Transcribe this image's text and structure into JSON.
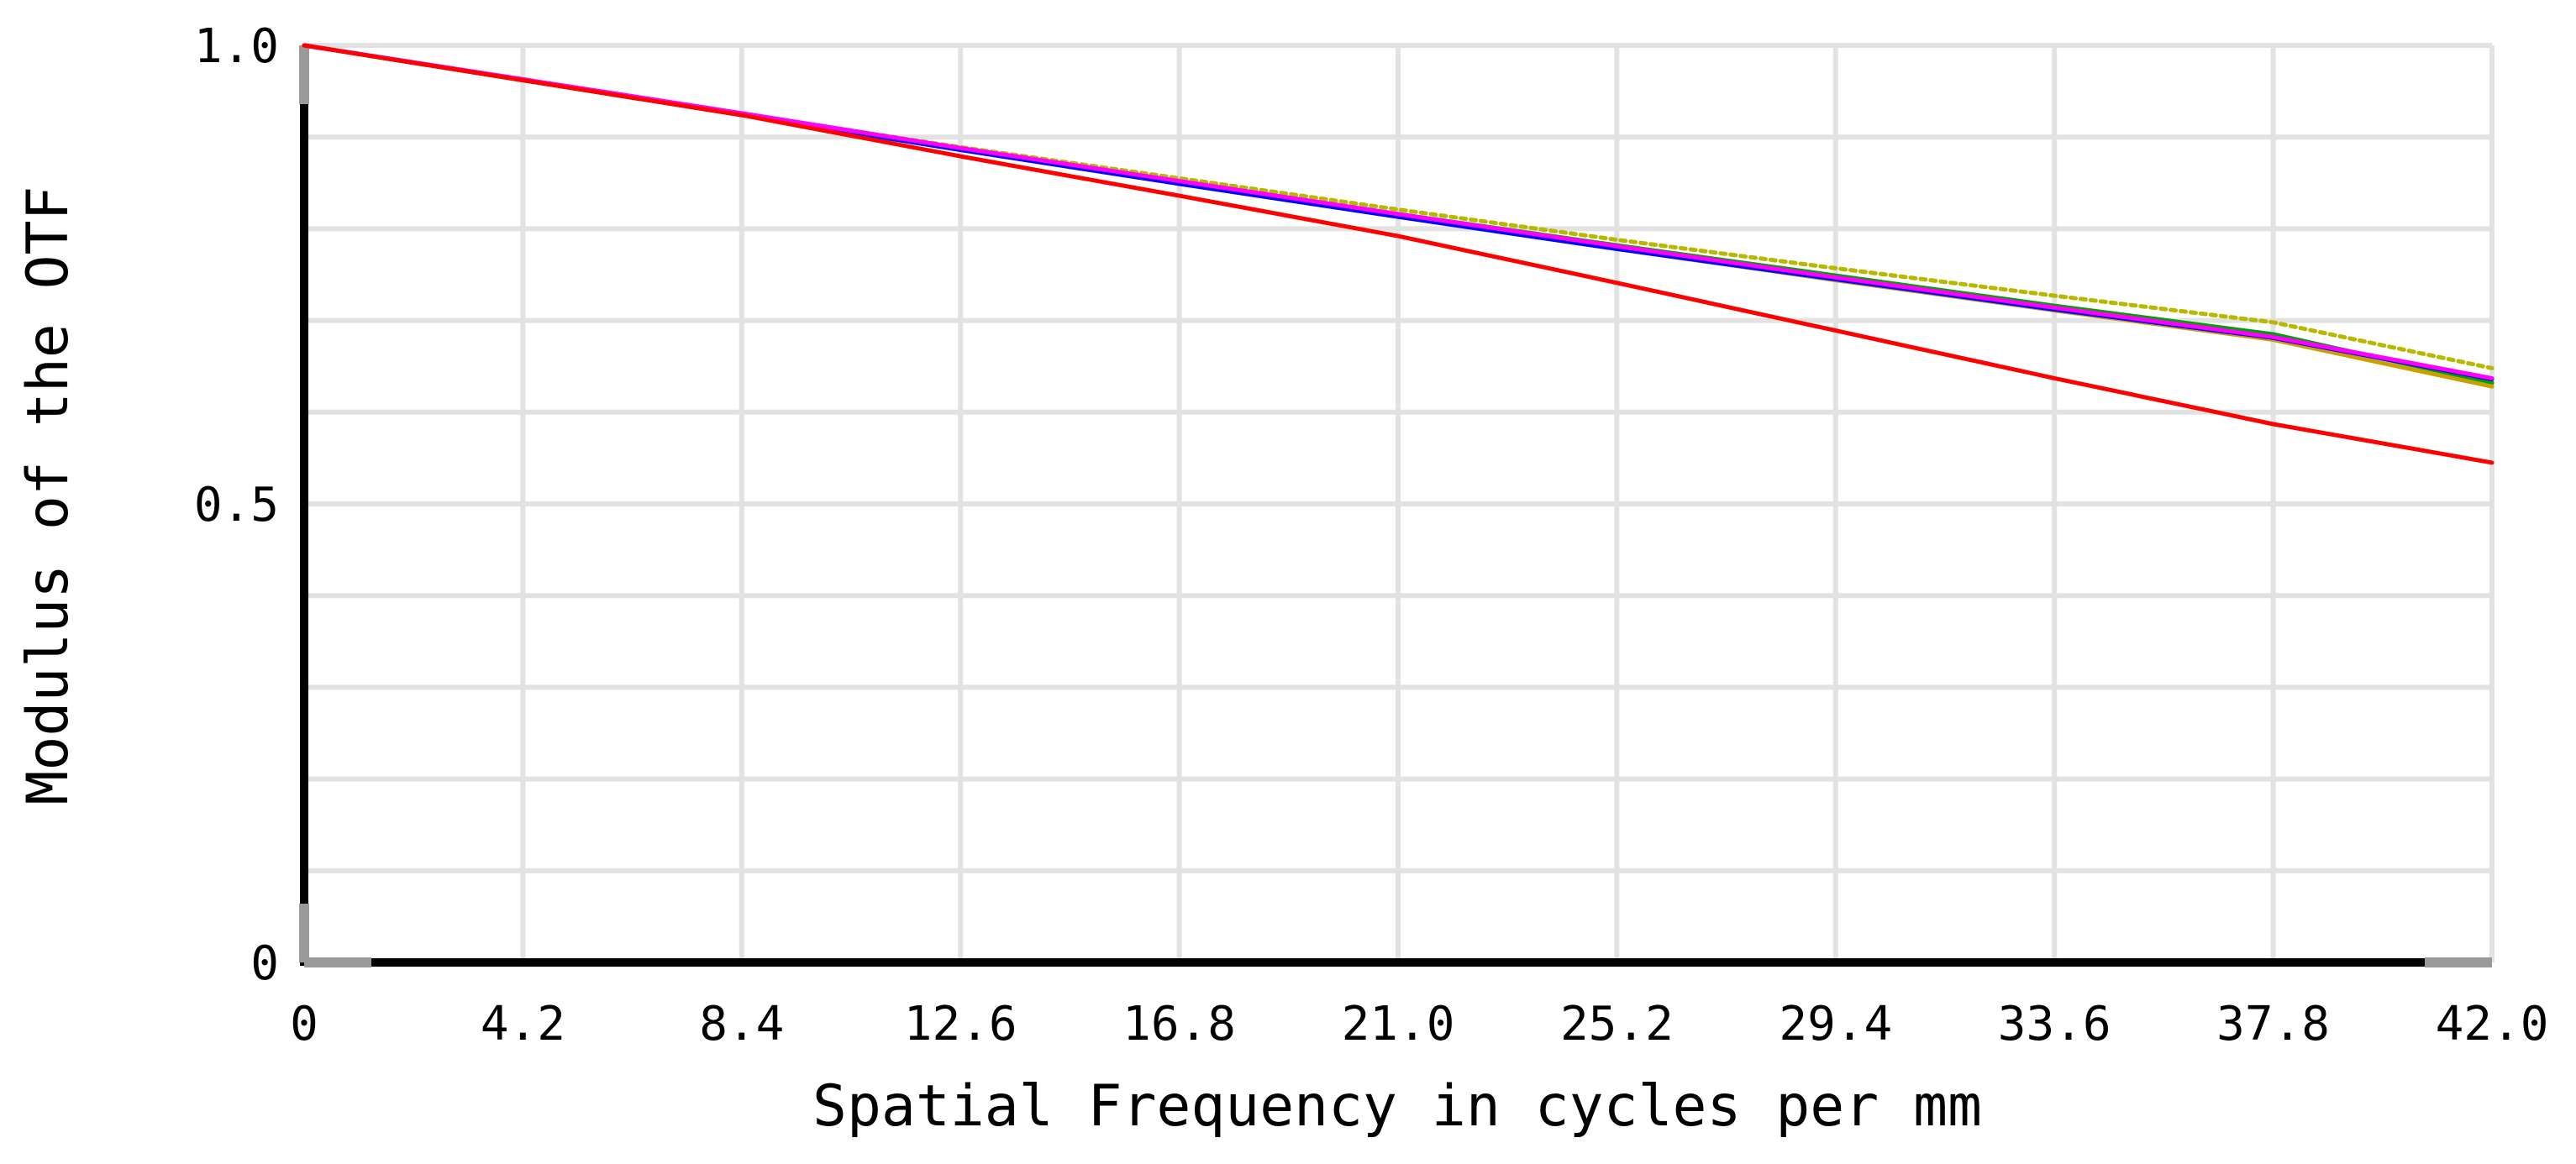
{
  "chart_data": {
    "type": "line",
    "title": "",
    "xlabel": "Spatial Frequency in cycles per mm",
    "ylabel": "Modulus of the OTF",
    "xlim": [
      0,
      42.0
    ],
    "ylim": [
      0,
      1.0
    ],
    "x_ticks": [
      0,
      4.2,
      8.4,
      12.6,
      16.8,
      21.0,
      25.2,
      29.4,
      33.6,
      37.8,
      42.0
    ],
    "x_tick_labels": [
      "0",
      "4.2",
      "8.4",
      "12.6",
      "16.8",
      "21.0",
      "25.2",
      "29.4",
      "33.6",
      "37.8",
      "42.0"
    ],
    "y_ticks": [
      0,
      0.5,
      1.0
    ],
    "y_tick_labels": [
      "0",
      "0.5",
      "1.0"
    ],
    "y_minor_gridlines": [
      0.1,
      0.2,
      0.3,
      0.4,
      0.6,
      0.7,
      0.8,
      0.9
    ],
    "grid": true,
    "legend": "none",
    "series": [
      {
        "color": "#b8b800",
        "dash": "dotted",
        "x": [
          0,
          4.2,
          8.4,
          12.6,
          16.8,
          21.0,
          25.2,
          29.4,
          33.6,
          37.8,
          42.0
        ],
        "y": [
          1.0,
          0.962,
          0.925,
          0.889,
          0.855,
          0.821,
          0.788,
          0.757,
          0.727,
          0.698,
          0.648
        ]
      },
      {
        "color": "#00a000",
        "dash": "solid",
        "x": [
          0,
          4.2,
          8.4,
          12.6,
          16.8,
          21.0,
          25.2,
          29.4,
          33.6,
          37.8,
          42.0
        ],
        "y": [
          1.0,
          0.962,
          0.924,
          0.887,
          0.851,
          0.816,
          0.782,
          0.749,
          0.716,
          0.685,
          0.632
        ]
      },
      {
        "color": "#c8a000",
        "dash": "solid",
        "x": [
          0,
          4.2,
          8.4,
          12.6,
          16.8,
          21.0,
          25.2,
          29.4,
          33.6,
          37.8,
          42.0
        ],
        "y": [
          1.0,
          0.962,
          0.924,
          0.886,
          0.849,
          0.813,
          0.778,
          0.744,
          0.711,
          0.679,
          0.628
        ]
      },
      {
        "color": "#0000ff",
        "dash": "solid",
        "x": [
          0,
          4.2,
          8.4,
          12.6,
          16.8,
          21.0,
          25.2,
          29.4,
          33.6,
          37.8,
          42.0
        ],
        "y": [
          1.0,
          0.962,
          0.924,
          0.886,
          0.849,
          0.813,
          0.778,
          0.745,
          0.712,
          0.681,
          0.636
        ]
      },
      {
        "color": "#ff00ff",
        "dash": "solid",
        "x": [
          0,
          4.2,
          8.4,
          12.6,
          16.8,
          21.0,
          25.2,
          29.4,
          33.6,
          37.8,
          42.0
        ],
        "y": [
          1.0,
          0.963,
          0.926,
          0.888,
          0.852,
          0.816,
          0.781,
          0.747,
          0.714,
          0.682,
          0.637
        ]
      },
      {
        "color": "#ff0000",
        "dash": "solid",
        "x": [
          0,
          4.2,
          8.4,
          12.6,
          16.8,
          21.0,
          25.2,
          29.4,
          33.6,
          37.8,
          42.0
        ],
        "y": [
          1.0,
          0.962,
          0.924,
          0.879,
          0.836,
          0.792,
          0.741,
          0.689,
          0.637,
          0.587,
          0.545
        ]
      }
    ]
  }
}
